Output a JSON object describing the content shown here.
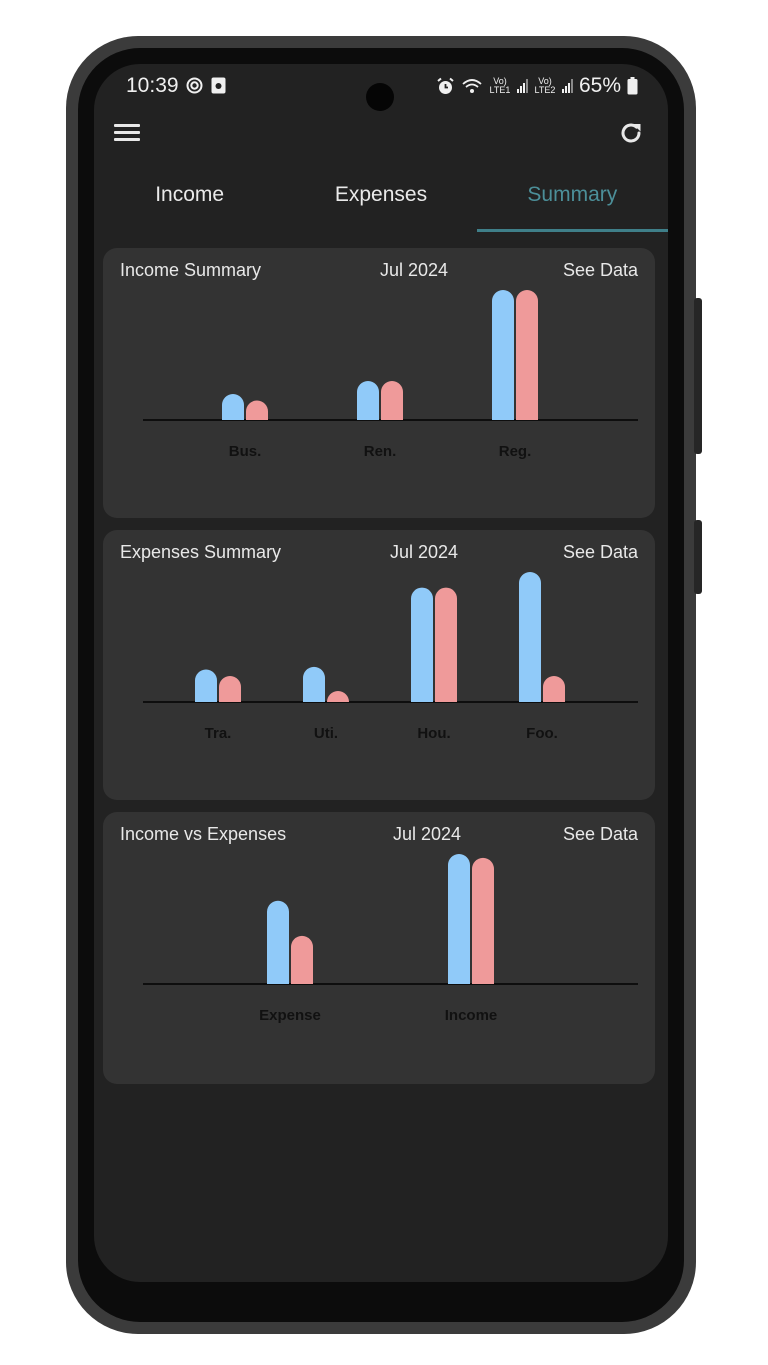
{
  "status_bar": {
    "time": "10:39",
    "left_icons": [
      "target-icon",
      "camera-app-icon"
    ],
    "right_icons": [
      "alarm-icon",
      "wifi-icon",
      "signal-sim1-icon",
      "signal-sim2-icon",
      "battery-icon"
    ],
    "sim1_label": "Vo) LTE1",
    "sim2_label": "Vo) LTE2",
    "battery": "65%"
  },
  "toolbar": {
    "menu_icon": "menu-icon",
    "refresh_icon": "refresh-icon"
  },
  "tabs": [
    {
      "label": "Income",
      "active": false
    },
    {
      "label": "Expenses",
      "active": false
    },
    {
      "label": "Summary",
      "active": true
    }
  ],
  "colors": {
    "accent": "#4c8f99",
    "series_blue": "#90caf9",
    "series_pink": "#ef9a9a",
    "card_bg": "#333333",
    "screen_bg": "#222222"
  },
  "cards": [
    {
      "title": "Income Summary",
      "date": "Jul 2024",
      "link": "See Data"
    },
    {
      "title": "Expenses Summary",
      "date": "Jul 2024",
      "link": "See Data"
    },
    {
      "title": "Income vs Expenses",
      "date": "Jul 2024",
      "link": "See Data"
    }
  ],
  "chart_data": [
    {
      "type": "bar",
      "categories": [
        "Bus.",
        "Ren.",
        "Reg."
      ],
      "series": [
        {
          "color": "#90caf9",
          "values": [
            20,
            30,
            100
          ]
        },
        {
          "color": "#ef9a9a",
          "values": [
            15,
            30,
            100
          ]
        }
      ],
      "ylim": [
        0,
        100
      ],
      "grid": false
    },
    {
      "type": "bar",
      "categories": [
        "Tra.",
        "Uti.",
        "Hou.",
        "Foo."
      ],
      "series": [
        {
          "color": "#90caf9",
          "values": [
            25,
            27,
            88,
            100
          ]
        },
        {
          "color": "#ef9a9a",
          "values": [
            20,
            8,
            88,
            20
          ]
        }
      ],
      "ylim": [
        0,
        100
      ],
      "grid": false
    },
    {
      "type": "bar",
      "categories": [
        "Expense",
        "Income"
      ],
      "series": [
        {
          "color": "#90caf9",
          "values": [
            64,
            100
          ]
        },
        {
          "color": "#ef9a9a",
          "values": [
            37,
            97
          ]
        }
      ],
      "ylim": [
        0,
        100
      ],
      "grid": false
    }
  ]
}
